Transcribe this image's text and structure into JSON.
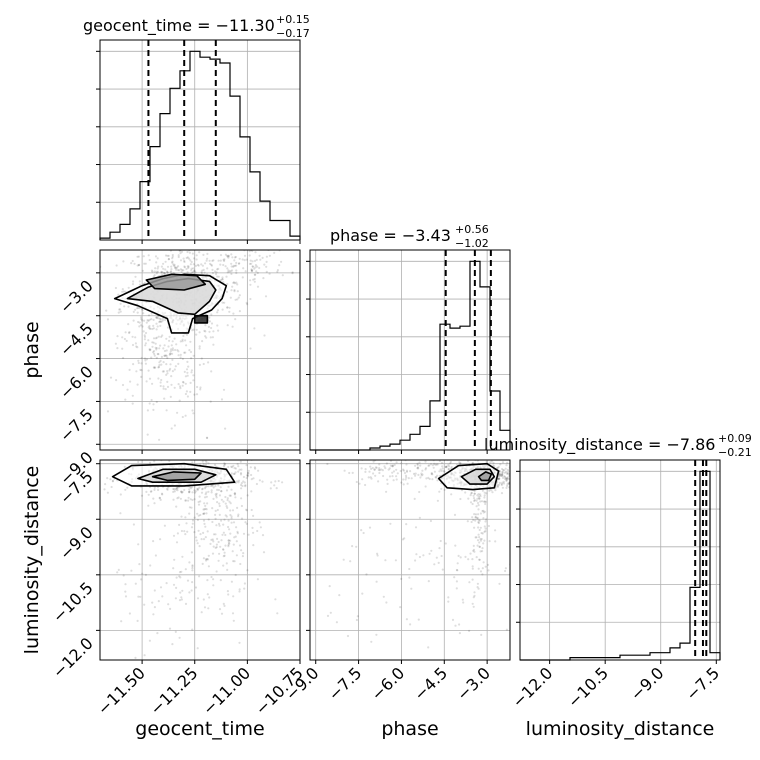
{
  "chart_data": {
    "type": "corner",
    "parameters": [
      "geocent_time",
      "phase",
      "luminosity_distance"
    ],
    "axis_labels": [
      "geocent_time",
      "phase",
      "luminosity_distance"
    ],
    "ranges": {
      "geocent_time": [
        -11.7,
        -10.75
      ],
      "phase": [
        -9.2,
        -2.2
      ],
      "luminosity_distance": [
        -12.8,
        -7.4
      ]
    },
    "ticks": {
      "geocent_time": [
        "−11.50",
        "−11.25",
        "−11.00",
        "−10.75"
      ],
      "phase": [
        "−9.0",
        "−7.5",
        "−6.0",
        "−4.5",
        "−3.0"
      ],
      "luminosity_distance": [
        "−12.0",
        "−10.5",
        "−9.0",
        "−7.5"
      ]
    },
    "diagonal": [
      {
        "parameter": "geocent_time",
        "title_main": "geocent_time = −11.30",
        "title_plus": "+0.15",
        "title_minus": "−0.17",
        "median": -11.3,
        "q_low": -11.47,
        "q_high": -11.15,
        "bin_start": -11.7,
        "bin_width": 0.0475,
        "counts": [
          1,
          4,
          8,
          16,
          30,
          48,
          65,
          78,
          87,
          97,
          94,
          93,
          91,
          74,
          53,
          35,
          20,
          10,
          10,
          2
        ]
      },
      {
        "parameter": "phase",
        "title_main": "phase = −3.43",
        "title_plus": "+0.56",
        "title_minus": "−1.02",
        "median": -3.43,
        "q_low": -4.45,
        "q_high": -2.87,
        "bin_start": -9.2,
        "bin_width": 0.35,
        "counts": [
          0,
          0,
          0,
          0,
          0,
          0,
          1,
          2,
          3,
          5,
          8,
          12,
          25,
          64,
          62,
          63,
          96,
          83,
          30,
          10
        ]
      },
      {
        "parameter": "luminosity_distance",
        "title_main": "luminosity_distance = −7.86",
        "title_plus": "+0.09",
        "title_minus": "−0.21",
        "median": -7.86,
        "q_low": -8.07,
        "q_high": -7.77,
        "bin_start": -12.8,
        "bin_width": 0.27,
        "counts": [
          0,
          0,
          0,
          0,
          0,
          1,
          1,
          1,
          1,
          1,
          2,
          2,
          2,
          3,
          3,
          5,
          7,
          30,
          78,
          3
        ]
      }
    ],
    "pairs": [
      {
        "x": "geocent_time",
        "y": "phase",
        "contours": [
          [
            [
              -11.63,
              -3.9
            ],
            [
              -11.5,
              -3.45
            ],
            [
              -11.4,
              -3.2
            ],
            [
              -11.3,
              -3.05
            ],
            [
              -11.18,
              -3.1
            ],
            [
              -11.1,
              -3.45
            ],
            [
              -11.12,
              -3.9
            ],
            [
              -11.17,
              -4.3
            ],
            [
              -11.26,
              -4.6
            ],
            [
              -11.28,
              -5.1
            ],
            [
              -11.36,
              -5.1
            ],
            [
              -11.38,
              -4.6
            ],
            [
              -11.52,
              -4.15
            ]
          ],
          [
            [
              -11.57,
              -3.9
            ],
            [
              -11.47,
              -3.5
            ],
            [
              -11.38,
              -3.3
            ],
            [
              -11.28,
              -3.2
            ],
            [
              -11.18,
              -3.3
            ],
            [
              -11.15,
              -3.6
            ],
            [
              -11.18,
              -4.0
            ],
            [
              -11.25,
              -4.45
            ],
            [
              -11.33,
              -4.4
            ],
            [
              -11.45,
              -4.0
            ]
          ],
          [
            [
              -11.48,
              -3.25
            ],
            [
              -11.36,
              -3.05
            ],
            [
              -11.24,
              -3.1
            ],
            [
              -11.2,
              -3.4
            ],
            [
              -11.3,
              -3.6
            ],
            [
              -11.44,
              -3.55
            ]
          ],
          [
            [
              -11.25,
              -4.5
            ],
            [
              -11.19,
              -4.5
            ],
            [
              -11.19,
              -4.75
            ],
            [
              -11.25,
              -4.75
            ]
          ]
        ],
        "scatter_density": [
          {
            "center": [
              -11.3,
              -3.6
            ],
            "spread": [
              0.14,
              0.8
            ],
            "n": 700
          },
          {
            "center": [
              -11.4,
              -5.6
            ],
            "spread": [
              0.1,
              0.9
            ],
            "n": 220
          },
          {
            "center": [
              -11.0,
              -2.7
            ],
            "spread": [
              0.1,
              0.3
            ],
            "n": 90
          },
          {
            "center": [
              -11.35,
              -7.4
            ],
            "spread": [
              0.14,
              0.9
            ],
            "n": 60
          }
        ]
      },
      {
        "x": "geocent_time",
        "y": "luminosity_distance",
        "contours": [
          [
            [
              -11.64,
              -7.85
            ],
            [
              -11.55,
              -7.55
            ],
            [
              -11.3,
              -7.5
            ],
            [
              -11.1,
              -7.65
            ],
            [
              -11.06,
              -8.0
            ],
            [
              -11.3,
              -8.1
            ],
            [
              -11.55,
              -8.1
            ]
          ],
          [
            [
              -11.52,
              -7.9
            ],
            [
              -11.4,
              -7.65
            ],
            [
              -11.25,
              -7.65
            ],
            [
              -11.15,
              -7.8
            ],
            [
              -11.22,
              -8.0
            ],
            [
              -11.45,
              -8.0
            ]
          ],
          [
            [
              -11.45,
              -7.85
            ],
            [
              -11.35,
              -7.72
            ],
            [
              -11.22,
              -7.75
            ],
            [
              -11.25,
              -7.92
            ],
            [
              -11.38,
              -7.95
            ]
          ]
        ],
        "scatter_density": [
          {
            "center": [
              -11.28,
              -7.9
            ],
            "spread": [
              0.15,
              0.25
            ],
            "n": 500
          },
          {
            "center": [
              -11.15,
              -9.0
            ],
            "spread": [
              0.1,
              1.0
            ],
            "n": 260
          },
          {
            "center": [
              -11.35,
              -10.8
            ],
            "spread": [
              0.18,
              0.9
            ],
            "n": 90
          }
        ]
      },
      {
        "x": "phase",
        "y": "luminosity_distance",
        "contours": [
          [
            [
              -4.7,
              -7.9
            ],
            [
              -4.0,
              -7.55
            ],
            [
              -3.0,
              -7.5
            ],
            [
              -2.6,
              -7.7
            ],
            [
              -2.75,
              -8.15
            ],
            [
              -3.5,
              -8.2
            ],
            [
              -4.4,
              -8.15
            ]
          ],
          [
            [
              -3.9,
              -7.85
            ],
            [
              -3.4,
              -7.65
            ],
            [
              -2.9,
              -7.65
            ],
            [
              -2.75,
              -7.85
            ],
            [
              -3.0,
              -8.05
            ],
            [
              -3.6,
              -8.05
            ]
          ],
          [
            [
              -3.3,
              -7.85
            ],
            [
              -3.05,
              -7.72
            ],
            [
              -2.85,
              -7.78
            ],
            [
              -2.95,
              -7.95
            ],
            [
              -3.2,
              -7.95
            ]
          ]
        ],
        "scatter_density": [
          {
            "center": [
              -3.2,
              -7.85
            ],
            "spread": [
              0.7,
              0.2
            ],
            "n": 500
          },
          {
            "center": [
              -5.5,
              -7.65
            ],
            "spread": [
              1.3,
              0.2
            ],
            "n": 180
          },
          {
            "center": [
              -3.3,
              -9.0
            ],
            "spread": [
              0.15,
              1.0
            ],
            "n": 120
          },
          {
            "center": [
              -4.5,
              -10.5
            ],
            "spread": [
              2.0,
              1.2
            ],
            "n": 120
          }
        ]
      }
    ],
    "grid": true
  }
}
